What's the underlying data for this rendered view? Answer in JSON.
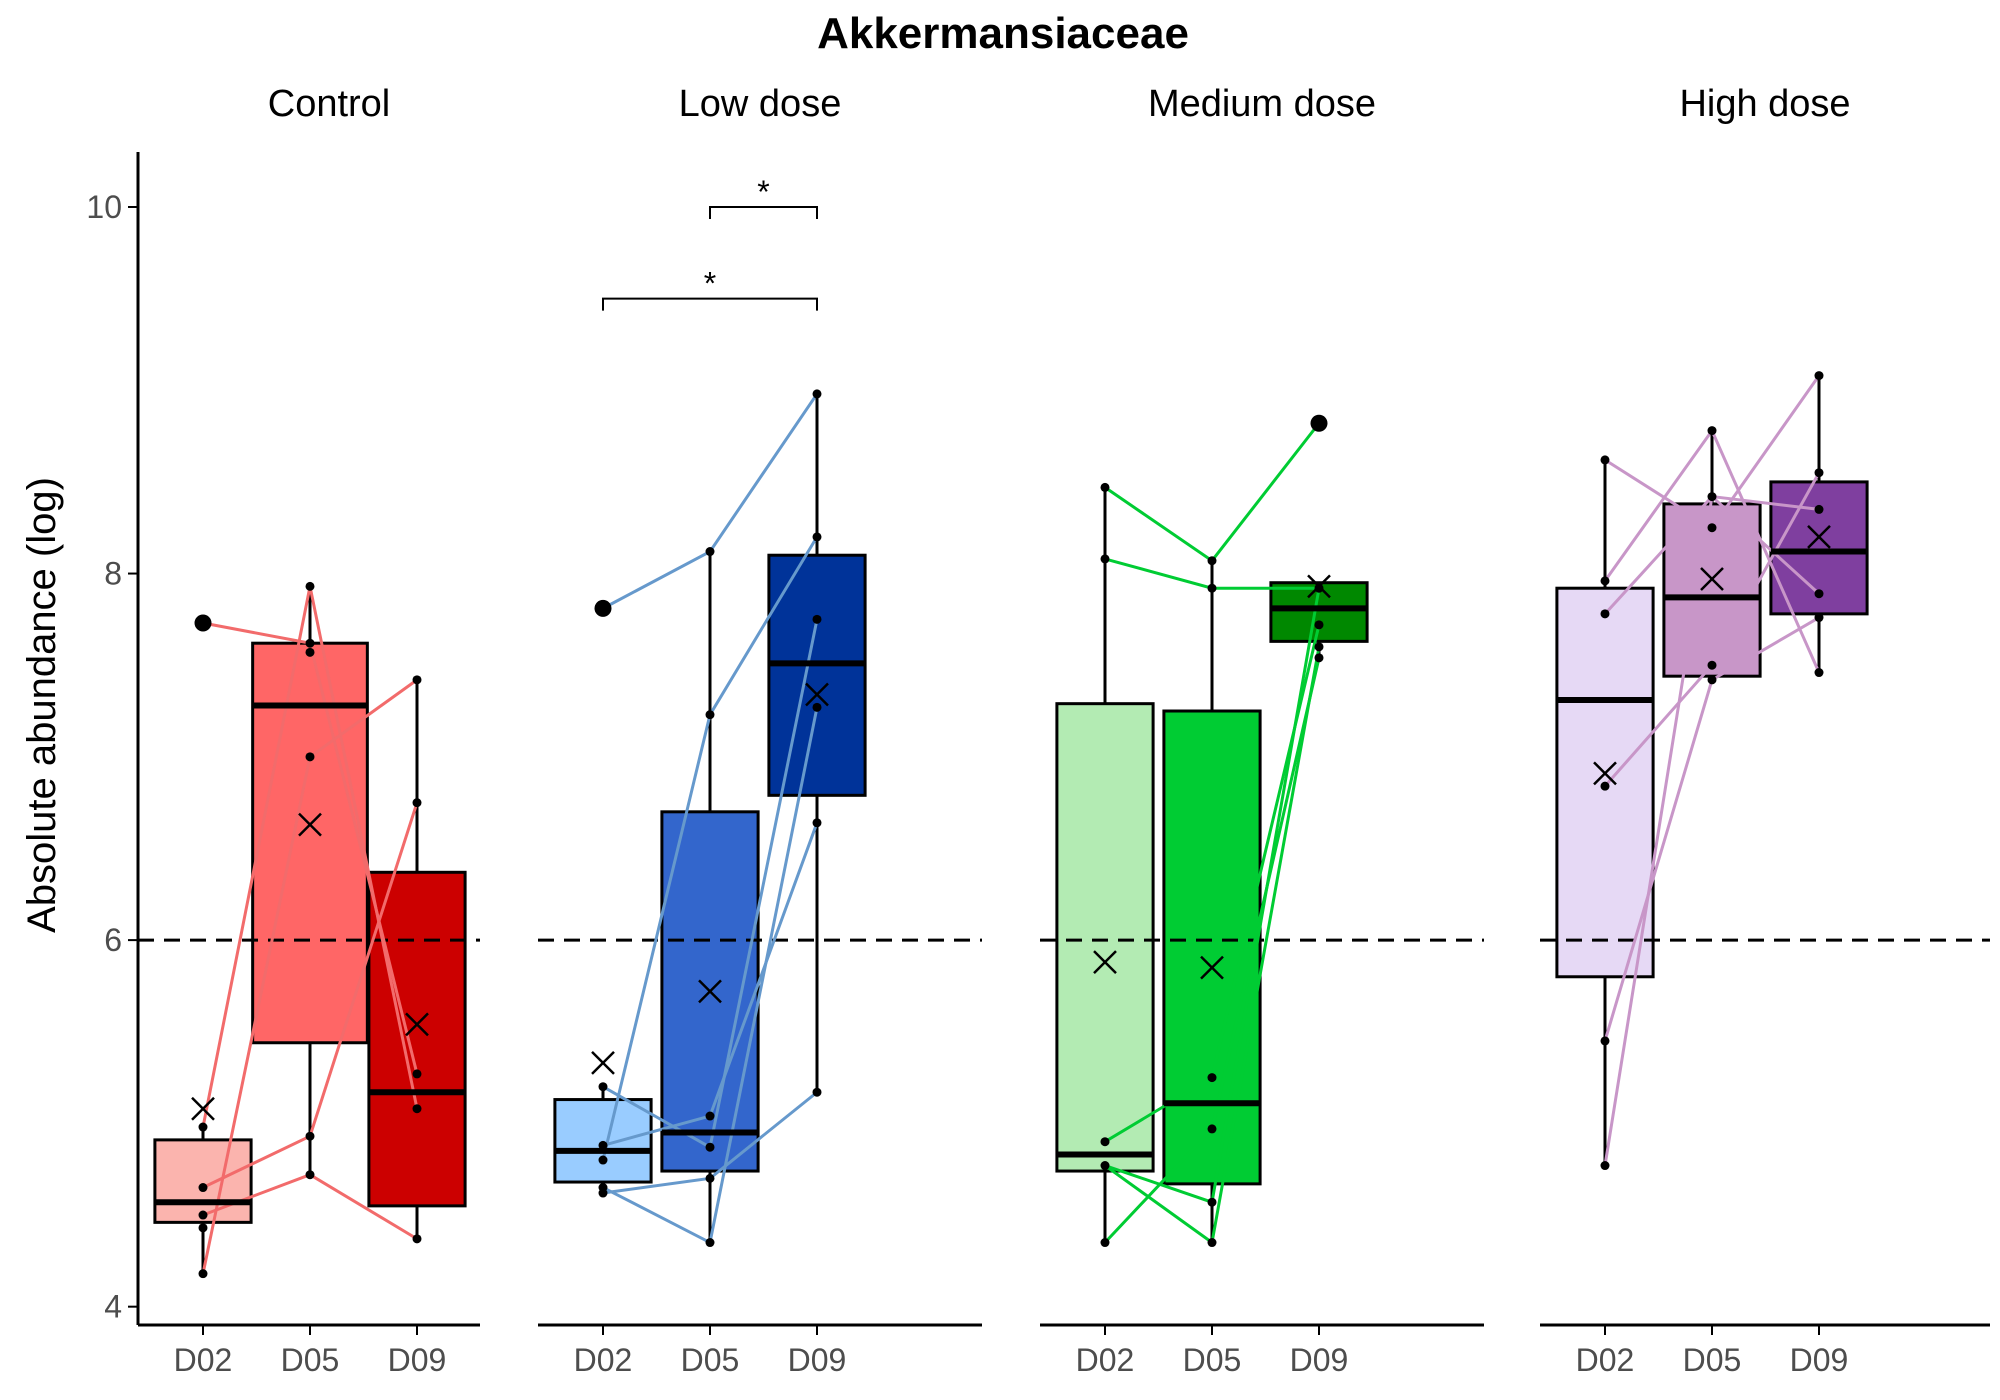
{
  "chart_data": {
    "type": "box",
    "title": "Akkermansiaceae",
    "ylabel": "Absolute abundance (log)",
    "ylim": [
      3.9,
      10.3
    ],
    "yticks": [
      4,
      6,
      8,
      10
    ],
    "reference_line_y": 6,
    "grid": false,
    "categories": [
      "D02",
      "D05",
      "D09"
    ],
    "panels": [
      {
        "name": "Control",
        "line_color": "#f26b6b",
        "boxes": [
          {
            "label": "D02",
            "fill": "#fbb4ae",
            "q1": 4.46,
            "median": 4.57,
            "q3": 4.91,
            "whisker_low": 4.18,
            "whisker_high": 4.98,
            "mean": 5.08,
            "points": [
              4.18,
              4.43,
              4.5,
              4.65,
              4.98
            ],
            "outliers": [
              7.73
            ]
          },
          {
            "label": "D05",
            "fill": "#ff6666",
            "q1": 5.44,
            "median": 7.28,
            "q3": 7.62,
            "whisker_low": 4.72,
            "whisker_high": 7.93,
            "mean": 6.63,
            "points": [
              4.72,
              4.93,
              7.0,
              7.57,
              7.62,
              7.93
            ],
            "outliers": []
          },
          {
            "label": "D09",
            "fill": "#cc0000",
            "q1": 4.55,
            "median": 5.17,
            "q3": 6.37,
            "whisker_low": 4.37,
            "whisker_high": 7.42,
            "mean": 5.54,
            "points": [
              4.37,
              5.08,
              5.27,
              6.75,
              7.42
            ],
            "outliers": []
          }
        ],
        "paired_lines": [
          [
            7.73,
            7.62,
            5.27
          ],
          [
            4.98,
            7.93,
            5.08
          ],
          [
            4.65,
            4.93,
            6.75
          ],
          [
            4.18,
            7.0,
            7.42
          ],
          [
            4.5,
            4.72,
            4.37
          ]
        ],
        "significance": []
      },
      {
        "name": "Low dose",
        "line_color": "#6699cc",
        "boxes": [
          {
            "label": "D02",
            "fill": "#99ccff",
            "q1": 4.68,
            "median": 4.85,
            "q3": 5.13,
            "whisker_low": 4.62,
            "whisker_high": 5.2,
            "mean": 5.33,
            "points": [
              4.62,
              4.65,
              4.8,
              4.88,
              5.2
            ],
            "outliers": [
              7.81
            ]
          },
          {
            "label": "D05",
            "fill": "#3366cc",
            "q1": 4.74,
            "median": 4.95,
            "q3": 6.7,
            "whisker_low": 4.35,
            "whisker_high": 8.12,
            "mean": 5.72,
            "points": [
              4.35,
              4.7,
              4.87,
              5.04,
              7.23,
              8.12
            ],
            "outliers": []
          },
          {
            "label": "D09",
            "fill": "#003399",
            "q1": 6.79,
            "median": 7.51,
            "q3": 8.1,
            "whisker_low": 5.17,
            "whisker_high": 8.98,
            "mean": 7.34,
            "points": [
              5.17,
              6.64,
              7.27,
              7.75,
              8.2,
              8.98
            ],
            "outliers": []
          }
        ],
        "paired_lines": [
          [
            7.81,
            8.12,
            8.98
          ],
          [
            4.8,
            7.23,
            8.2
          ],
          [
            4.88,
            5.04,
            6.64
          ],
          [
            4.65,
            4.35,
            7.27
          ],
          [
            4.62,
            4.7,
            5.17
          ],
          [
            5.2,
            4.87,
            7.75
          ]
        ],
        "significance": [
          {
            "from": "D05",
            "to": "D09",
            "y": 10.0,
            "label": "*"
          },
          {
            "from": "D02",
            "to": "D09",
            "y": 9.5,
            "label": "*"
          }
        ]
      },
      {
        "name": "Medium dose",
        "line_color": "#00cc33",
        "boxes": [
          {
            "label": "D02",
            "fill": "#b3ebb3",
            "q1": 4.74,
            "median": 4.83,
            "q3": 7.29,
            "whisker_low": 4.35,
            "whisker_high": 8.47,
            "mean": 5.88,
            "points": [
              4.35,
              4.77,
              4.9,
              8.08,
              8.47
            ],
            "outliers": []
          },
          {
            "label": "D05",
            "fill": "#00cc33",
            "q1": 4.67,
            "median": 5.11,
            "q3": 7.25,
            "whisker_low": 4.35,
            "whisker_high": 8.07,
            "mean": 5.85,
            "points": [
              4.35,
              4.57,
              4.97,
              5.25,
              7.92,
              8.07
            ],
            "outliers": []
          },
          {
            "label": "D09",
            "fill": "#008800",
            "q1": 7.63,
            "median": 7.81,
            "q3": 7.95,
            "whisker_low": 7.54,
            "whisker_high": 7.95,
            "mean": 7.93,
            "points": [
              7.54,
              7.6,
              7.72,
              7.92
            ],
            "outliers": [
              8.82
            ]
          }
        ],
        "paired_lines": [
          [
            8.47,
            8.07,
            8.82
          ],
          [
            8.08,
            7.92,
            7.92
          ],
          [
            4.9,
            5.25,
            7.72
          ],
          [
            4.77,
            4.35,
            7.6
          ],
          [
            4.35,
            4.97,
            7.54
          ],
          [
            4.77,
            4.57,
            7.92
          ]
        ],
        "significance": []
      },
      {
        "name": "High dose",
        "line_color": "#c896c8",
        "boxes": [
          {
            "label": "D02",
            "fill": "#e6d9f5",
            "q1": 5.8,
            "median": 7.31,
            "q3": 7.92,
            "whisker_low": 4.77,
            "whisker_high": 8.62,
            "mean": 6.91,
            "points": [
              4.77,
              5.45,
              6.84,
              7.78,
              7.96,
              8.62
            ],
            "outliers": []
          },
          {
            "label": "D05",
            "fill": "#c896c8",
            "q1": 7.44,
            "median": 7.87,
            "q3": 8.38,
            "whisker_low": 7.42,
            "whisker_high": 8.78,
            "mean": 7.97,
            "points": [
              7.42,
              7.5,
              8.25,
              8.42,
              8.78
            ],
            "outliers": []
          },
          {
            "label": "D09",
            "fill": "#7f3f9f",
            "q1": 7.78,
            "median": 8.12,
            "q3": 8.5,
            "whisker_low": 7.46,
            "whisker_high": 9.08,
            "mean": 8.2,
            "points": [
              7.46,
              7.76,
              7.89,
              8.35,
              8.55,
              9.08
            ],
            "outliers": []
          }
        ],
        "paired_lines": [
          [
            8.62,
            8.25,
            9.08
          ],
          [
            7.96,
            8.78,
            7.46
          ],
          [
            7.78,
            8.42,
            8.35
          ],
          [
            6.84,
            7.5,
            8.55
          ],
          [
            5.45,
            7.42,
            7.76
          ],
          [
            4.77,
            8.42,
            7.89
          ]
        ],
        "significance": []
      }
    ]
  }
}
